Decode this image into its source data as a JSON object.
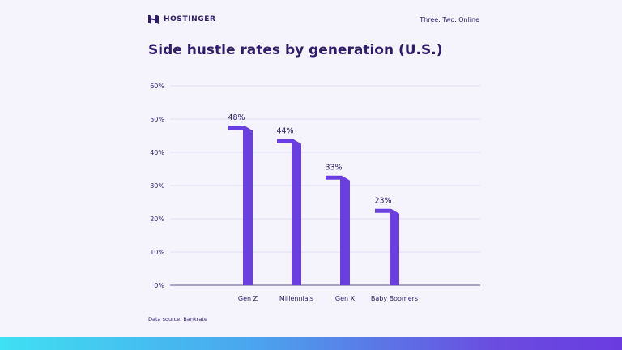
{
  "brand": {
    "name": "HOSTINGER",
    "tagline": "Three. Two. Online"
  },
  "colors": {
    "bar": "#6a3fe0",
    "text": "#2f1c6a",
    "grid": "#d9d7ef",
    "background": "#f5f4fc"
  },
  "footer": {
    "source": "Data source: Bankrate"
  },
  "chart_data": {
    "type": "bar",
    "title": "Side hustle rates by generation (U.S.)",
    "categories": [
      "Gen Z",
      "Millennials",
      "Gen X",
      "Baby Boomers"
    ],
    "values": [
      48,
      44,
      33,
      23
    ],
    "data_labels": [
      "48%",
      "44%",
      "33%",
      "23%"
    ],
    "ylim": [
      0,
      60
    ],
    "yticks": [
      0,
      10,
      20,
      30,
      40,
      50,
      60
    ],
    "ytick_labels": [
      "0%",
      "10%",
      "20%",
      "30%",
      "40%",
      "50%",
      "60%"
    ],
    "grid": true,
    "xlabel": "",
    "ylabel": ""
  }
}
